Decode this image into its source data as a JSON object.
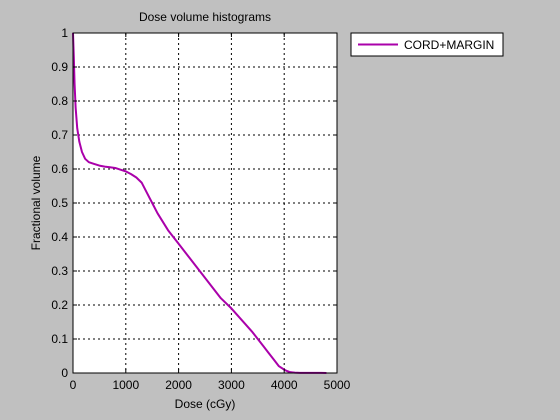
{
  "chart_data": {
    "type": "line",
    "title": "Dose volume histograms",
    "xlabel": "Dose (cGy)",
    "ylabel": "Fractional volume",
    "xlim": [
      0,
      5000
    ],
    "ylim": [
      0,
      1
    ],
    "xticks": [
      0,
      1000,
      2000,
      3000,
      4000,
      5000
    ],
    "yticks": [
      0,
      0.1,
      0.2,
      0.3,
      0.4,
      0.5,
      0.6,
      0.7,
      0.8,
      0.9,
      1
    ],
    "grid": true,
    "legend_position": "outside-top-right",
    "series": [
      {
        "name": "CORD+MARGIN",
        "color": "#aa00aa",
        "x": [
          0,
          15,
          30,
          50,
          80,
          120,
          170,
          230,
          300,
          400,
          500,
          600,
          700,
          800,
          900,
          1000,
          1100,
          1200,
          1300,
          1400,
          1500,
          1600,
          1800,
          2000,
          2200,
          2400,
          2600,
          2800,
          3000,
          3200,
          3400,
          3500,
          3600,
          3700,
          3800,
          3900,
          4000,
          4050,
          4100,
          4150,
          4200,
          4300,
          4500,
          4700,
          4800
        ],
        "y": [
          1.0,
          0.93,
          0.85,
          0.78,
          0.72,
          0.68,
          0.65,
          0.63,
          0.62,
          0.615,
          0.61,
          0.607,
          0.605,
          0.603,
          0.598,
          0.593,
          0.585,
          0.575,
          0.56,
          0.53,
          0.5,
          0.47,
          0.42,
          0.38,
          0.34,
          0.3,
          0.26,
          0.22,
          0.19,
          0.155,
          0.12,
          0.1,
          0.08,
          0.06,
          0.04,
          0.02,
          0.01,
          0.006,
          0.003,
          0.002,
          0.001,
          0.0005,
          0.0003,
          0.0002,
          0
        ]
      }
    ]
  }
}
